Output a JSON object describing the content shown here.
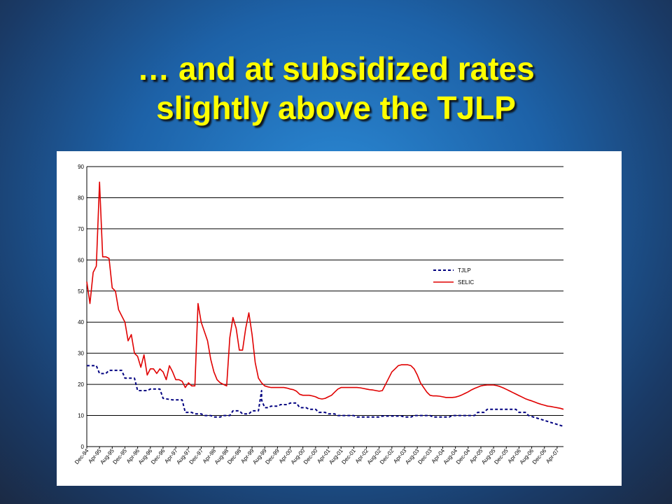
{
  "slide": {
    "title_line1": "… and at subsidized rates",
    "title_line2": "slightly above the TJLP"
  },
  "chart_data": {
    "type": "line",
    "title": "",
    "xlabel": "",
    "ylabel": "",
    "ylim": [
      0,
      90
    ],
    "yticks": [
      0,
      10,
      20,
      30,
      40,
      50,
      60,
      70,
      80,
      90
    ],
    "grid": "horizontal",
    "legend": "upper-right",
    "x_start": "Dec-94",
    "x_end": "Jun-07",
    "xtick_labels": [
      "Dec-94",
      "Apr-95",
      "Aug-95",
      "Dec-95",
      "Apr-96",
      "Aug-96",
      "Dec-96",
      "Apr-97",
      "Aug-97",
      "Dec-97",
      "Apr-98",
      "Aug-98",
      "Dec-98",
      "Apr-99",
      "Aug-99",
      "Dec-99",
      "Apr-00",
      "Aug-00",
      "Dec-00",
      "Apr-01",
      "Aug-01",
      "Dec-01",
      "Apr-02",
      "Aug-02",
      "Dec-02",
      "Apr-03",
      "Aug-03",
      "Dec-03",
      "Apr-04",
      "Aug-04",
      "Dec-04",
      "Apr-05",
      "Aug-05",
      "Dec-05",
      "Apr-06",
      "Aug-06",
      "Dec-06",
      "Apr-07"
    ],
    "series": [
      {
        "name": "TJLP",
        "style": "dashed",
        "color": "#000080",
        "points": [
          [
            "Dec-94",
            26
          ],
          [
            "Mar-95",
            26
          ],
          [
            "Apr-95",
            23.5
          ],
          [
            "Jun-95",
            23.5
          ],
          [
            "Jul-95",
            24.5
          ],
          [
            "Nov-95",
            24.5
          ],
          [
            "Dec-95",
            22
          ],
          [
            "Mar-96",
            22
          ],
          [
            "Apr-96",
            18
          ],
          [
            "Jul-96",
            18
          ],
          [
            "Aug-96",
            18.5
          ],
          [
            "Nov-96",
            18.5
          ],
          [
            "Dec-96",
            15.5
          ],
          [
            "Mar-97",
            15
          ],
          [
            "Jun-97",
            15
          ],
          [
            "Jul-97",
            11
          ],
          [
            "Sep-97",
            11
          ],
          [
            "Oct-97",
            10.5
          ],
          [
            "Dec-97",
            10.5
          ],
          [
            "Jan-98",
            10
          ],
          [
            "Mar-98",
            10
          ],
          [
            "Apr-98",
            9.5
          ],
          [
            "Jun-98",
            9.5
          ],
          [
            "Jul-98",
            10
          ],
          [
            "Sep-98",
            10
          ],
          [
            "Oct-98",
            11.5
          ],
          [
            "Dec-98",
            11.5
          ],
          [
            "Jan-99",
            10.5
          ],
          [
            "Mar-99",
            10.5
          ],
          [
            "Apr-99",
            11.5
          ],
          [
            "Jun-99",
            11.5
          ],
          [
            "Jul-99",
            18
          ],
          [
            "Jul-99",
            15
          ],
          [
            "Aug-99",
            12.5
          ],
          [
            "Sep-99",
            12.5
          ],
          [
            "Oct-99",
            13
          ],
          [
            "Dec-99",
            13
          ],
          [
            "Jan-00",
            13.5
          ],
          [
            "Mar-00",
            13.5
          ],
          [
            "Apr-00",
            14
          ],
          [
            "Jun-00",
            14
          ],
          [
            "Jul-00",
            12.5
          ],
          [
            "Sep-00",
            12.5
          ],
          [
            "Oct-00",
            12
          ],
          [
            "Dec-00",
            12
          ],
          [
            "Jan-01",
            11
          ],
          [
            "Mar-01",
            11
          ],
          [
            "Apr-01",
            10.5
          ],
          [
            "Jun-01",
            10.5
          ],
          [
            "Jul-01",
            10
          ],
          [
            "Dec-01",
            10
          ],
          [
            "Jan-02",
            9.5
          ],
          [
            "Aug-02",
            9.5
          ],
          [
            "Sep-02",
            9.8
          ],
          [
            "Mar-03",
            9.8
          ],
          [
            "Apr-03",
            9.5
          ],
          [
            "Jun-03",
            9.5
          ],
          [
            "Jul-03",
            10
          ],
          [
            "Dec-03",
            10
          ],
          [
            "Jan-04",
            9.5
          ],
          [
            "Jun-04",
            9.5
          ],
          [
            "Jul-04",
            10
          ],
          [
            "Feb-05",
            10
          ],
          [
            "Mar-05",
            11
          ],
          [
            "May-05",
            11
          ],
          [
            "Jun-05",
            12
          ],
          [
            "Mar-06",
            12
          ],
          [
            "Apr-06",
            11
          ],
          [
            "Jun-06",
            11
          ],
          [
            "Jul-06",
            10
          ],
          [
            "Jun-07",
            6.5
          ]
        ]
      },
      {
        "name": "SELIC",
        "style": "solid",
        "color": "#e00000",
        "points": [
          [
            "Dec-94",
            53
          ],
          [
            "Jan-95",
            46
          ],
          [
            "Feb-95",
            56
          ],
          [
            "Mar-95",
            58
          ],
          [
            "Apr-95",
            85
          ],
          [
            "May-95",
            61
          ],
          [
            "Jun-95",
            61
          ],
          [
            "Jul-95",
            60.5
          ],
          [
            "Aug-95",
            51
          ],
          [
            "Sep-95",
            50
          ],
          [
            "Oct-95",
            44
          ],
          [
            "Nov-95",
            42
          ],
          [
            "Dec-95",
            40
          ],
          [
            "Jan-96",
            34
          ],
          [
            "Feb-96",
            36
          ],
          [
            "Mar-96",
            30
          ],
          [
            "Apr-96",
            29
          ],
          [
            "May-96",
            25.5
          ],
          [
            "Jun-96",
            29.5
          ],
          [
            "Jul-96",
            23
          ],
          [
            "Aug-96",
            25
          ],
          [
            "Sep-96",
            25
          ],
          [
            "Oct-96",
            23.5
          ],
          [
            "Nov-96",
            25
          ],
          [
            "Dec-96",
            24
          ],
          [
            "Jan-97",
            21.5
          ],
          [
            "Feb-97",
            26
          ],
          [
            "Mar-97",
            24
          ],
          [
            "Apr-97",
            21.5
          ],
          [
            "May-97",
            21.5
          ],
          [
            "Jun-97",
            21
          ],
          [
            "Jul-97",
            19
          ],
          [
            "Aug-97",
            20.5
          ],
          [
            "Sep-97",
            19.5
          ],
          [
            "Oct-97",
            19.5
          ],
          [
            "Nov-97",
            46
          ],
          [
            "Dec-97",
            40
          ],
          [
            "Jan-98",
            37
          ],
          [
            "Feb-98",
            34
          ],
          [
            "Mar-98",
            28
          ],
          [
            "Apr-98",
            24
          ],
          [
            "May-98",
            21.5
          ],
          [
            "Jun-98",
            20.5
          ],
          [
            "Jul-98",
            20
          ],
          [
            "Aug-98",
            19.5
          ],
          [
            "Sep-98",
            35
          ],
          [
            "Oct-98",
            41.5
          ],
          [
            "Nov-98",
            38
          ],
          [
            "Dec-98",
            31
          ],
          [
            "Jan-99",
            31
          ],
          [
            "Feb-99",
            38
          ],
          [
            "Mar-99",
            43
          ],
          [
            "Apr-99",
            36
          ],
          [
            "May-99",
            27
          ],
          [
            "Jun-99",
            22
          ],
          [
            "Jul-99",
            20.5
          ],
          [
            "Aug-99",
            19.5
          ],
          [
            "Sep-99",
            19.2
          ],
          [
            "Oct-99",
            19
          ],
          [
            "Nov-99",
            19
          ],
          [
            "Dec-99",
            19
          ],
          [
            "Jan-00",
            19
          ],
          [
            "Feb-00",
            19
          ],
          [
            "Mar-00",
            18.8
          ],
          [
            "Apr-00",
            18.5
          ],
          [
            "May-00",
            18.3
          ],
          [
            "Jun-00",
            17.8
          ],
          [
            "Jul-00",
            16.8
          ],
          [
            "Aug-00",
            16.5
          ],
          [
            "Sep-00",
            16.5
          ],
          [
            "Oct-00",
            16.5
          ],
          [
            "Nov-00",
            16.3
          ],
          [
            "Dec-00",
            16
          ],
          [
            "Jan-01",
            15.5
          ],
          [
            "Feb-01",
            15.3
          ],
          [
            "Mar-01",
            15.5
          ],
          [
            "Apr-01",
            16
          ],
          [
            "May-01",
            16.5
          ],
          [
            "Jun-01",
            17.5
          ],
          [
            "Jul-01",
            18.5
          ],
          [
            "Aug-01",
            19
          ],
          [
            "Sep-01",
            19
          ],
          [
            "Oct-01",
            19
          ],
          [
            "Nov-01",
            19
          ],
          [
            "Dec-01",
            19
          ],
          [
            "Jan-02",
            19
          ],
          [
            "Feb-02",
            18.9
          ],
          [
            "Mar-02",
            18.7
          ],
          [
            "Apr-02",
            18.5
          ],
          [
            "May-02",
            18.3
          ],
          [
            "Jun-02",
            18.2
          ],
          [
            "Jul-02",
            18
          ],
          [
            "Aug-02",
            17.8
          ],
          [
            "Sep-02",
            18
          ],
          [
            "Oct-02",
            20
          ],
          [
            "Nov-02",
            22
          ],
          [
            "Dec-02",
            24
          ],
          [
            "Jan-03",
            25
          ],
          [
            "Feb-03",
            26
          ],
          [
            "Mar-03",
            26.3
          ],
          [
            "Apr-03",
            26.3
          ],
          [
            "May-03",
            26.3
          ],
          [
            "Jun-03",
            26
          ],
          [
            "Jul-03",
            25
          ],
          [
            "Aug-03",
            23
          ],
          [
            "Sep-03",
            20.5
          ],
          [
            "Oct-03",
            19
          ],
          [
            "Nov-03",
            17.5
          ],
          [
            "Dec-03",
            16.5
          ],
          [
            "Jan-04",
            16.3
          ],
          [
            "Feb-04",
            16.3
          ],
          [
            "Mar-04",
            16.2
          ],
          [
            "Apr-04",
            16
          ],
          [
            "May-04",
            15.8
          ],
          [
            "Jun-04",
            15.8
          ],
          [
            "Jul-04",
            15.8
          ],
          [
            "Aug-04",
            15.9
          ],
          [
            "Sep-04",
            16.2
          ],
          [
            "Oct-04",
            16.6
          ],
          [
            "Nov-04",
            17.1
          ],
          [
            "Dec-04",
            17.6
          ],
          [
            "Jan-05",
            18.2
          ],
          [
            "Feb-05",
            18.7
          ],
          [
            "Mar-05",
            19.1
          ],
          [
            "Apr-05",
            19.5
          ],
          [
            "May-05",
            19.7
          ],
          [
            "Jun-05",
            19.8
          ],
          [
            "Jul-05",
            19.8
          ],
          [
            "Aug-05",
            19.8
          ],
          [
            "Sep-05",
            19.6
          ],
          [
            "Oct-05",
            19.3
          ],
          [
            "Nov-05",
            18.9
          ],
          [
            "Dec-05",
            18.4
          ],
          [
            "Jan-06",
            17.9
          ],
          [
            "Feb-06",
            17.4
          ],
          [
            "Mar-06",
            16.9
          ],
          [
            "Apr-06",
            16.4
          ],
          [
            "May-06",
            15.9
          ],
          [
            "Jun-06",
            15.4
          ],
          [
            "Jul-06",
            15.0
          ],
          [
            "Aug-06",
            14.7
          ],
          [
            "Sep-06",
            14.3
          ],
          [
            "Oct-06",
            13.9
          ],
          [
            "Nov-06",
            13.6
          ],
          [
            "Dec-06",
            13.3
          ],
          [
            "Jan-07",
            13.0
          ],
          [
            "Feb-07",
            12.9
          ],
          [
            "Mar-07",
            12.7
          ],
          [
            "Apr-07",
            12.5
          ],
          [
            "May-07",
            12.3
          ],
          [
            "Jun-07",
            12.0
          ]
        ]
      }
    ]
  }
}
